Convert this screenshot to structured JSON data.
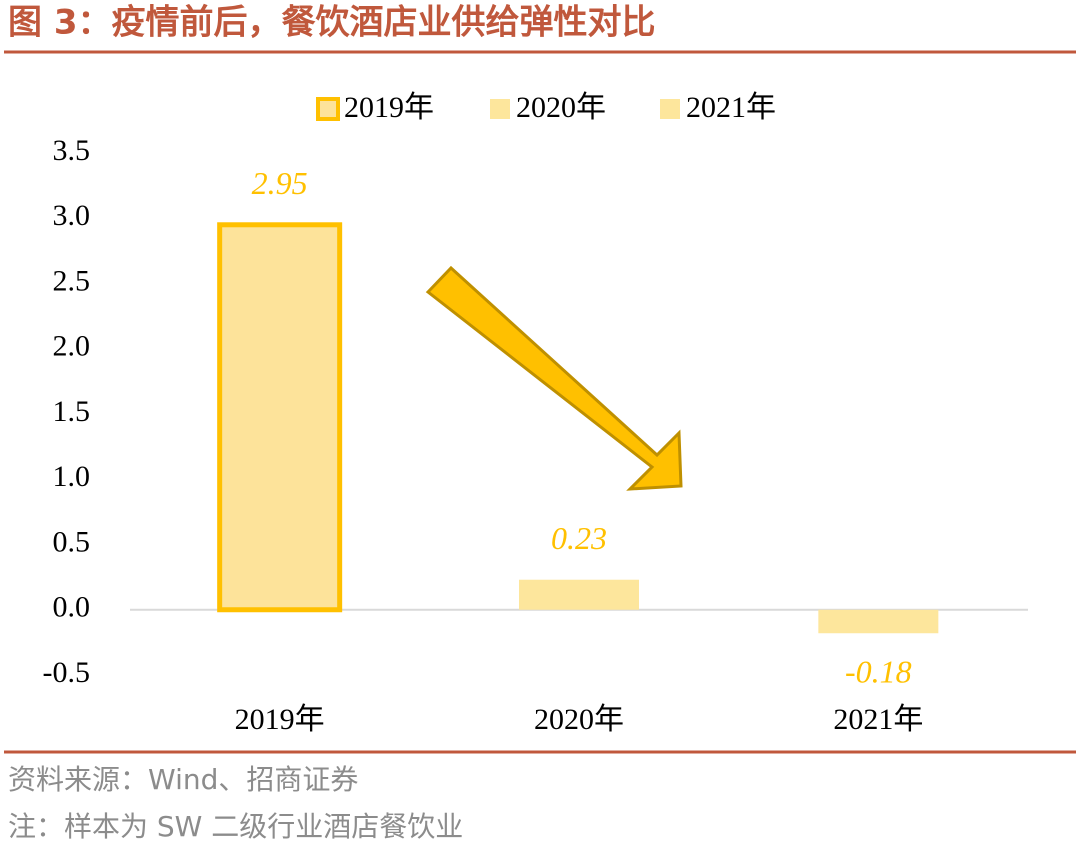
{
  "chart_data": {
    "type": "bar",
    "title": "图 3：疫情前后，餐饮酒店业供给弹性对比",
    "source": "资料来源：Wind、招商证券",
    "note": "注：样本为 SW 二级行业酒店餐饮业",
    "categories": [
      "2019年",
      "2020年",
      "2021年"
    ],
    "series": [
      {
        "name": "2019年",
        "color": "#fde39a",
        "stroke": "#ffc000",
        "values": [
          2.95,
          null,
          null
        ]
      },
      {
        "name": "2020年",
        "color": "#fde69c",
        "values": [
          null,
          0.23,
          null
        ]
      },
      {
        "name": "2021年",
        "color": "#fde69c",
        "values": [
          null,
          null,
          -0.18
        ]
      }
    ],
    "ylim": [
      -0.5,
      3.5
    ],
    "yticks": [
      -0.5,
      {
        "value": 0,
        "label": "0.0"
      },
      0.5,
      {
        "value": 1,
        "label": "1.0"
      },
      1.5,
      {
        "value": 2,
        "label": "2.0"
      },
      2.5,
      {
        "value": 3,
        "label": "3.0"
      },
      3.5
    ],
    "grid": false,
    "legend": "top"
  }
}
